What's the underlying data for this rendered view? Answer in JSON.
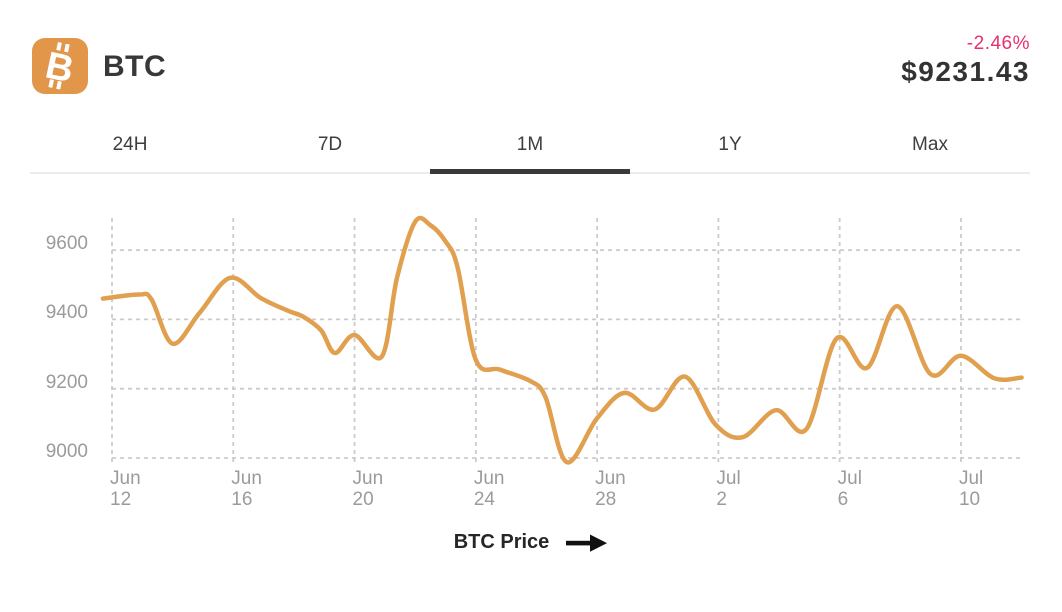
{
  "header": {
    "title": "BTC",
    "icon_letter": "B",
    "change_percent": "-2.46%",
    "price": "$9231.43"
  },
  "tabs": [
    {
      "label": "24H",
      "active": false
    },
    {
      "label": "7D",
      "active": false
    },
    {
      "label": "1M",
      "active": true
    },
    {
      "label": "1Y",
      "active": false
    },
    {
      "label": "Max",
      "active": false
    }
  ],
  "legend": {
    "label": "BTC Price"
  },
  "colors": {
    "line_orange": "#e0a04f",
    "icon_orange": "#e2964a",
    "change_pink": "#e8306d",
    "text_dark": "#383838",
    "axis_gray": "#9b9b9b",
    "grid_gray": "#cbcbcb",
    "tab_underline": "#3a3a3a"
  },
  "chart_data": {
    "type": "line",
    "title": "BTC Price",
    "series_name": "BTC Price",
    "line_color": "#e0a04f",
    "xlabel": "",
    "ylabel": "",
    "x_unit": "days_since_jun_12",
    "grid": "dashed",
    "legend_position": "bottom-center",
    "y_ticks": [
      9000,
      9200,
      9400,
      9600
    ],
    "y_range": [
      8985,
      9695
    ],
    "x_ticks": [
      {
        "day": 0,
        "month": "Jun",
        "date": "12"
      },
      {
        "day": 4,
        "month": "Jun",
        "date": "16"
      },
      {
        "day": 8,
        "month": "Jun",
        "date": "20"
      },
      {
        "day": 12,
        "month": "Jun",
        "date": "24"
      },
      {
        "day": 16,
        "month": "Jun",
        "date": "28"
      },
      {
        "day": 20,
        "month": "Jul",
        "date": "2"
      },
      {
        "day": 24,
        "month": "Jul",
        "date": "6"
      },
      {
        "day": 28,
        "month": "Jul",
        "date": "10"
      }
    ],
    "points": [
      [
        -0.3,
        9460
      ],
      [
        0.9,
        9472
      ],
      [
        1.3,
        9458
      ],
      [
        2.0,
        9330
      ],
      [
        2.9,
        9420
      ],
      [
        3.9,
        9520
      ],
      [
        4.9,
        9462
      ],
      [
        5.8,
        9425
      ],
      [
        6.3,
        9408
      ],
      [
        6.9,
        9368
      ],
      [
        7.35,
        9303
      ],
      [
        8.0,
        9355
      ],
      [
        8.9,
        9293
      ],
      [
        9.4,
        9520
      ],
      [
        10.0,
        9682
      ],
      [
        10.5,
        9672
      ],
      [
        11.0,
        9625
      ],
      [
        11.4,
        9550
      ],
      [
        12.0,
        9283
      ],
      [
        12.8,
        9255
      ],
      [
        13.8,
        9222
      ],
      [
        14.3,
        9175
      ],
      [
        15.0,
        8988
      ],
      [
        16.0,
        9115
      ],
      [
        16.9,
        9188
      ],
      [
        17.9,
        9140
      ],
      [
        18.9,
        9235
      ],
      [
        19.9,
        9097
      ],
      [
        20.8,
        9060
      ],
      [
        21.9,
        9138
      ],
      [
        22.9,
        9083
      ],
      [
        23.9,
        9345
      ],
      [
        24.9,
        9260
      ],
      [
        25.9,
        9438
      ],
      [
        27.0,
        9242
      ],
      [
        28.0,
        9295
      ],
      [
        29.1,
        9230
      ],
      [
        30.0,
        9232
      ]
    ]
  }
}
